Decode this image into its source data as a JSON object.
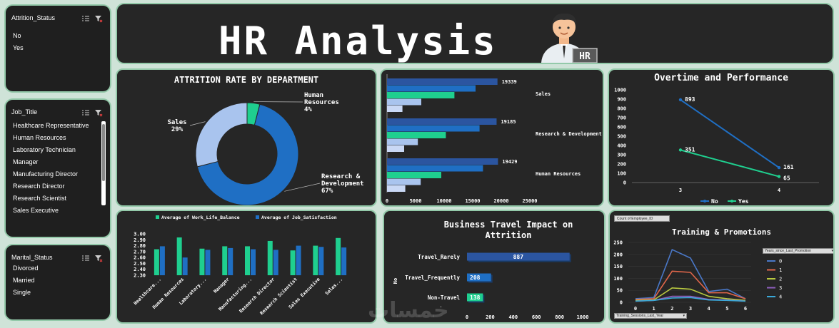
{
  "header": {
    "title": "HR Analysis",
    "logo_badge": "HR"
  },
  "slicers": {
    "attrition": {
      "title": "Attrition_Status",
      "items": [
        "No",
        "Yes"
      ]
    },
    "job": {
      "title": "Job_Title",
      "items": [
        "Healthcare Representative",
        "Human Resources",
        "Laboratory Technician",
        "Manager",
        "Manufacturing Director",
        "Research Director",
        "Research Scientist",
        "Sales Executive"
      ]
    },
    "marital": {
      "title": "Marital_Status",
      "items": [
        "Divorced",
        "Married",
        "Single"
      ]
    }
  },
  "colors": {
    "panel": "#262626",
    "border": "#93c9a9",
    "blue": "#1f6fc4",
    "dark_blue": "#2b55a0",
    "green": "#1fcf8f",
    "light_blue": "#a9c4ee",
    "pale": "#c9d8f5"
  },
  "charts": [
    {
      "id": "dept_donut",
      "type": "pie",
      "title": "ATTRITION RATE BY DEPARTMENT",
      "slices": [
        {
          "name": "Human Resources",
          "value": 4,
          "label": "Human\nResources\n4%"
        },
        {
          "name": "Research & Development",
          "value": 67,
          "label": "Research &\nDevelopment\n67%"
        },
        {
          "name": "Sales",
          "value": 29,
          "label": "Sales\n29%"
        }
      ]
    },
    {
      "id": "dept_bars",
      "type": "bar",
      "orientation": "horizontal",
      "categories": [
        "Sales",
        "Research & Development",
        "Human Resources"
      ],
      "series": [
        {
          "values": [
            19339,
            19185,
            19429
          ]
        },
        {
          "values": [
            15500,
            16200,
            16800
          ]
        },
        {
          "values": [
            11800,
            10300,
            9500
          ]
        },
        {
          "values": [
            6000,
            5400,
            5900
          ]
        },
        {
          "values": [
            2700,
            3000,
            3200
          ]
        }
      ],
      "data_labels": [
        "19339",
        "19185",
        "19429"
      ],
      "xticks": [
        "0",
        "5000",
        "10000",
        "15000",
        "20000",
        "25000"
      ],
      "xlim": [
        0,
        25000
      ]
    },
    {
      "id": "overtime",
      "type": "line",
      "title": "Overtime and Performance",
      "categories": [
        "3",
        "4"
      ],
      "series": [
        {
          "name": "No",
          "values": [
            893,
            161
          ]
        },
        {
          "name": "Yes",
          "values": [
            351,
            65
          ]
        }
      ],
      "yticks": [
        "0",
        "100",
        "200",
        "300",
        "400",
        "500",
        "600",
        "700",
        "800",
        "900",
        "1000"
      ],
      "ylim": [
        0,
        1000
      ]
    },
    {
      "id": "wlb",
      "type": "bar",
      "categories": [
        "Healthcare...",
        "Human Resources",
        "Laboratory...",
        "Manager",
        "Manufacturing...",
        "Research Director",
        "Research Scientist",
        "Sales Executive",
        "Sales..."
      ],
      "series": [
        {
          "name": "Average of Work_Life_Balance",
          "values": [
            2.74,
            2.94,
            2.75,
            2.79,
            2.79,
            2.88,
            2.72,
            2.8,
            2.93
          ]
        },
        {
          "name": "Average of Job_Satisfaction",
          "values": [
            2.79,
            2.6,
            2.73,
            2.76,
            2.74,
            2.73,
            2.8,
            2.78,
            2.77
          ]
        }
      ],
      "yticks": [
        "2.30",
        "2.40",
        "2.50",
        "2.60",
        "2.70",
        "2.80",
        "2.90",
        "3.00"
      ],
      "ylim": [
        2.3,
        3.0
      ]
    },
    {
      "id": "travel",
      "type": "bar",
      "orientation": "horizontal",
      "title": "Business Travel Impact on Attrition",
      "categories": [
        "Travel_Rarely",
        "Travel_Frequently",
        "Non-Travel"
      ],
      "values": [
        887,
        208,
        138
      ],
      "ylabel": "No",
      "xticks": [
        "0",
        "200",
        "400",
        "600",
        "800",
        "1000"
      ],
      "xlim": [
        0,
        1000
      ]
    },
    {
      "id": "training",
      "type": "line",
      "title": "Training & Promotions",
      "categories": [
        "0",
        "1",
        "2",
        "3",
        "4",
        "5",
        "6"
      ],
      "series": [
        {
          "name": "0",
          "values": [
            15,
            20,
            220,
            185,
            45,
            55,
            15
          ]
        },
        {
          "name": "1",
          "values": [
            12,
            15,
            130,
            125,
            40,
            40,
            15
          ]
        },
        {
          "name": "2",
          "values": [
            8,
            10,
            60,
            55,
            25,
            15,
            8
          ]
        },
        {
          "name": "3",
          "values": [
            5,
            8,
            25,
            25,
            12,
            10,
            5
          ]
        },
        {
          "name": "4",
          "values": [
            5,
            8,
            18,
            20,
            10,
            8,
            5
          ]
        }
      ],
      "yticks": [
        "0",
        "50",
        "100",
        "150",
        "200",
        "250"
      ],
      "ylim": [
        0,
        250
      ],
      "field_button": "Count of Employee_ID",
      "legend_dropdown": "Years_since_Last_Promotion",
      "axis_dropdown": "Training_Sessions_Last_Year"
    }
  ],
  "watermark": "خمسات"
}
